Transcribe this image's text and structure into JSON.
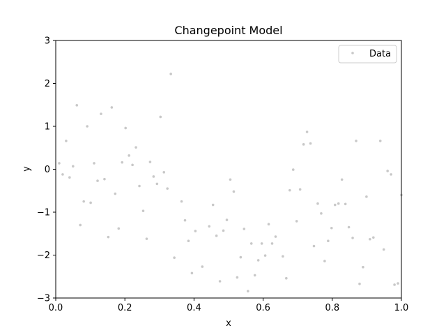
{
  "chart_data": {
    "type": "scatter",
    "title": "Changepoint Model",
    "xlabel": "x",
    "ylabel": "y",
    "xlim": [
      0.0,
      1.0
    ],
    "ylim": [
      -3,
      3
    ],
    "xticks": [
      0.0,
      0.2,
      0.4,
      0.6,
      0.8,
      1.0
    ],
    "xtick_labels": [
      "0.0",
      "0.2",
      "0.4",
      "0.6",
      "0.8",
      "1.0"
    ],
    "yticks": [
      -3,
      -2,
      -1,
      0,
      1,
      2,
      3
    ],
    "ytick_labels": [
      "−3",
      "−2",
      "−1",
      "0",
      "1",
      "2",
      "3"
    ],
    "grid": false,
    "legend": {
      "position": "top-right",
      "entries": [
        "Data"
      ]
    },
    "series": [
      {
        "name": "Data",
        "color": "#c8c8c8",
        "points": [
          [
            0.01,
            0.14
          ],
          [
            0.02,
            -0.12
          ],
          [
            0.03,
            0.66
          ],
          [
            0.04,
            -0.19
          ],
          [
            0.05,
            0.07
          ],
          [
            0.061,
            1.49
          ],
          [
            0.071,
            -1.3
          ],
          [
            0.081,
            -0.75
          ],
          [
            0.091,
            1.0
          ],
          [
            0.101,
            -0.78
          ],
          [
            0.111,
            0.14
          ],
          [
            0.121,
            -0.27
          ],
          [
            0.131,
            1.29
          ],
          [
            0.141,
            -0.23
          ],
          [
            0.152,
            -1.58
          ],
          [
            0.162,
            1.44
          ],
          [
            0.172,
            -0.57
          ],
          [
            0.182,
            -1.38
          ],
          [
            0.192,
            0.16
          ],
          [
            0.202,
            0.96
          ],
          [
            0.212,
            0.32
          ],
          [
            0.222,
            0.1
          ],
          [
            0.232,
            0.51
          ],
          [
            0.242,
            -0.39
          ],
          [
            0.253,
            -0.97
          ],
          [
            0.263,
            -1.62
          ],
          [
            0.273,
            0.17
          ],
          [
            0.283,
            -0.17
          ],
          [
            0.293,
            -0.34
          ],
          [
            0.303,
            1.22
          ],
          [
            0.313,
            -0.07
          ],
          [
            0.323,
            -0.45
          ],
          [
            0.333,
            2.22
          ],
          [
            0.343,
            -2.06
          ],
          [
            0.364,
            -0.75
          ],
          [
            0.374,
            -1.19
          ],
          [
            0.384,
            -1.67
          ],
          [
            0.394,
            -2.42
          ],
          [
            0.404,
            -1.44
          ],
          [
            0.424,
            -2.27
          ],
          [
            0.444,
            -1.33
          ],
          [
            0.455,
            -0.83
          ],
          [
            0.465,
            -1.55
          ],
          [
            0.475,
            -2.61
          ],
          [
            0.485,
            -1.43
          ],
          [
            0.495,
            -1.18
          ],
          [
            0.505,
            -0.24
          ],
          [
            0.515,
            -0.52
          ],
          [
            0.525,
            -2.52
          ],
          [
            0.535,
            -2.05
          ],
          [
            0.545,
            -1.39
          ],
          [
            0.556,
            -2.84
          ],
          [
            0.566,
            -1.73
          ],
          [
            0.576,
            -2.47
          ],
          [
            0.586,
            -2.12
          ],
          [
            0.596,
            -1.73
          ],
          [
            0.606,
            -2.01
          ],
          [
            0.616,
            -1.28
          ],
          [
            0.626,
            -1.73
          ],
          [
            0.636,
            -1.57
          ],
          [
            0.657,
            -2.03
          ],
          [
            0.667,
            -2.54
          ],
          [
            0.677,
            -0.49
          ],
          [
            0.687,
            -0.01
          ],
          [
            0.697,
            -1.21
          ],
          [
            0.707,
            -0.47
          ],
          [
            0.717,
            0.58
          ],
          [
            0.727,
            0.87
          ],
          [
            0.737,
            0.6
          ],
          [
            0.747,
            -1.79
          ],
          [
            0.758,
            -0.8
          ],
          [
            0.768,
            -1.03
          ],
          [
            0.778,
            -2.14
          ],
          [
            0.788,
            -1.67
          ],
          [
            0.798,
            -1.37
          ],
          [
            0.808,
            -0.83
          ],
          [
            0.818,
            -0.8
          ],
          [
            0.828,
            -0.24
          ],
          [
            0.838,
            -0.81
          ],
          [
            0.848,
            -1.35
          ],
          [
            0.859,
            -1.6
          ],
          [
            0.869,
            0.66
          ],
          [
            0.879,
            -2.67
          ],
          [
            0.889,
            -2.28
          ],
          [
            0.899,
            -0.64
          ],
          [
            0.909,
            -1.63
          ],
          [
            0.919,
            -1.59
          ],
          [
            0.939,
            0.66
          ],
          [
            0.949,
            -1.87
          ],
          [
            0.96,
            -0.04
          ],
          [
            0.97,
            -0.12
          ],
          [
            0.98,
            -2.69
          ],
          [
            0.99,
            -2.66
          ],
          [
            1.0,
            -0.6
          ]
        ]
      }
    ]
  }
}
